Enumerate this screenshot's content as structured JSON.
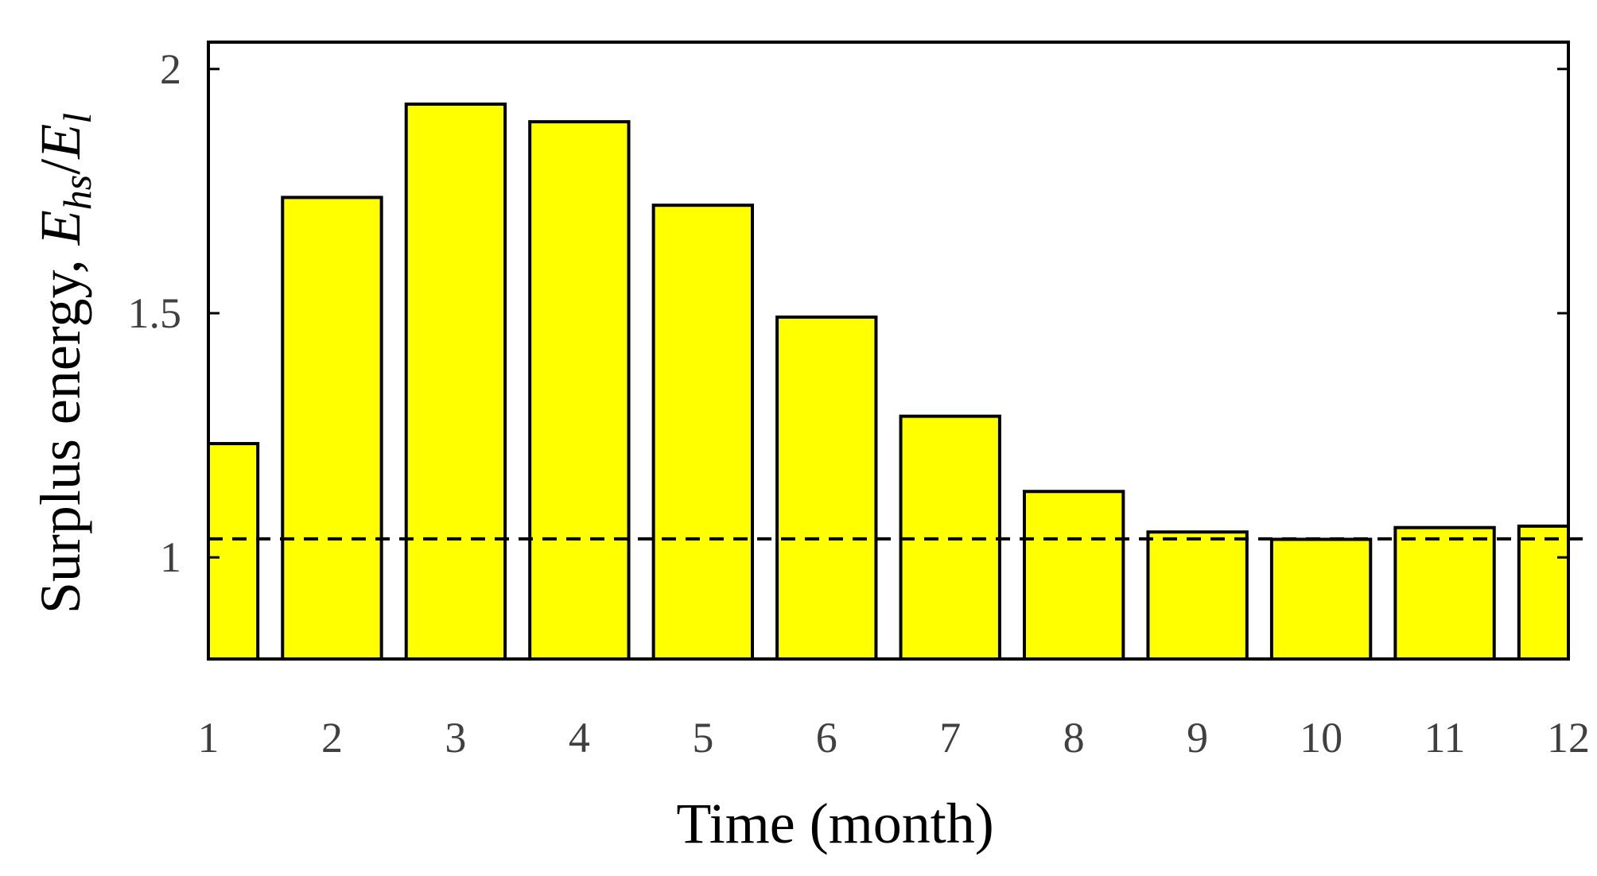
{
  "chart_data": {
    "type": "bar",
    "title": "",
    "xlabel": "Time (month)",
    "ylabel": {
      "text": "Surplus energy, ",
      "symbol_main": "E",
      "symbol_sub": "hs",
      "separator": "/",
      "symbol2_main": "E",
      "symbol2_sub": "l"
    },
    "categories": [
      "1",
      "2",
      "3",
      "4",
      "5",
      "6",
      "7",
      "8",
      "9",
      "10",
      "11",
      "12"
    ],
    "values": [
      1.233,
      1.737,
      1.928,
      1.892,
      1.721,
      1.492,
      1.289,
      1.135,
      1.052,
      1.037,
      1.061,
      1.064
    ],
    "xlim": [
      1,
      12
    ],
    "ylim": [
      0.792,
      2.055
    ],
    "yticks": [
      1,
      1.5,
      2
    ],
    "ytick_labels": [
      "1",
      "1.5",
      "2"
    ],
    "reference_line": {
      "y": 1.038,
      "style": "dashed",
      "color": "#000000"
    },
    "bar_color": "#ffff00",
    "bar_edge_color": "#000000",
    "grid": false,
    "legend": "none"
  }
}
